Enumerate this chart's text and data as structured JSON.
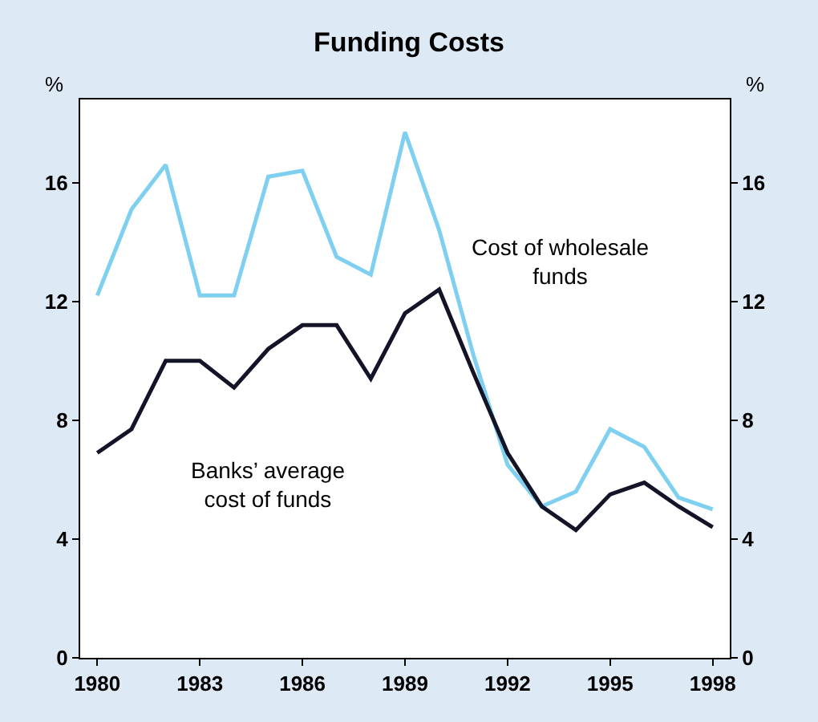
{
  "chart_data": {
    "type": "line",
    "title": "Funding Costs",
    "ylabel": "%",
    "y2label": "%",
    "x": [
      1980,
      1981,
      1982,
      1983,
      1984,
      1985,
      1986,
      1987,
      1988,
      1989,
      1990,
      1991,
      1992,
      1993,
      1994,
      1995,
      1996,
      1997,
      1998
    ],
    "series": [
      {
        "name": "Cost of wholesale funds",
        "color": "#7fd0f0",
        "values": [
          12.2,
          15.1,
          16.6,
          12.2,
          12.2,
          16.2,
          16.4,
          13.5,
          12.9,
          17.7,
          14.4,
          10.2,
          6.5,
          5.1,
          5.6,
          7.7,
          7.1,
          5.4,
          5.0
        ]
      },
      {
        "name": "Banks’ average cost of funds",
        "color": "#141428",
        "values": [
          6.9,
          7.7,
          10.0,
          10.0,
          9.1,
          10.4,
          11.2,
          11.2,
          9.4,
          11.6,
          12.4,
          9.6,
          6.9,
          5.1,
          4.3,
          5.5,
          5.9,
          5.1,
          4.4
        ]
      }
    ],
    "xlim": [
      1979.5,
      1998.5
    ],
    "xticks": [
      1980,
      1983,
      1986,
      1989,
      1992,
      1995,
      1998
    ],
    "ylim": [
      0,
      18.8
    ],
    "yticks": [
      0,
      4,
      8,
      12,
      16
    ],
    "y2lim": [
      0,
      18.8
    ],
    "y2ticks": [
      0,
      4,
      8,
      12,
      16
    ],
    "grid": false,
    "legend": false,
    "marker": "none",
    "line_style": "solid"
  }
}
